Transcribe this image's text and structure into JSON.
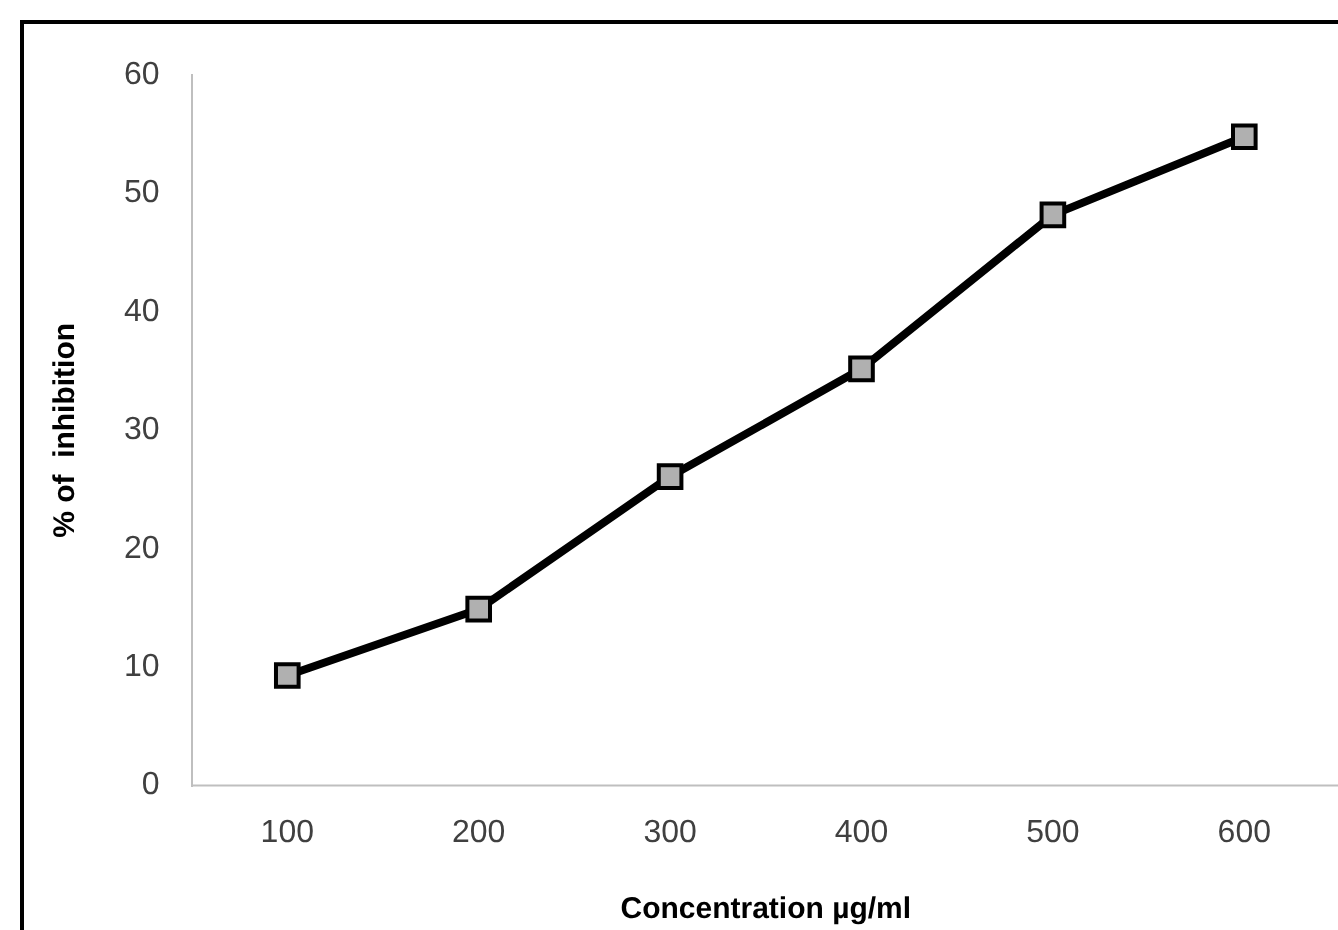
{
  "chart_data": {
    "type": "line",
    "xlabel": "Concentration µg/ml",
    "ylabel": "% of  inhibition",
    "categories": [
      "100",
      "200",
      "300",
      "400",
      "500",
      "600"
    ],
    "series": [
      {
        "color": "#000000",
        "values": [
          9.3,
          14.9,
          26.1,
          35.2,
          48.2,
          54.8
        ]
      }
    ],
    "ylim": [
      0,
      60
    ],
    "yticks": [
      0,
      10,
      20,
      30,
      40,
      50,
      60
    ],
    "grid": false,
    "legend": false,
    "marker": "square",
    "line_style": "solid"
  }
}
